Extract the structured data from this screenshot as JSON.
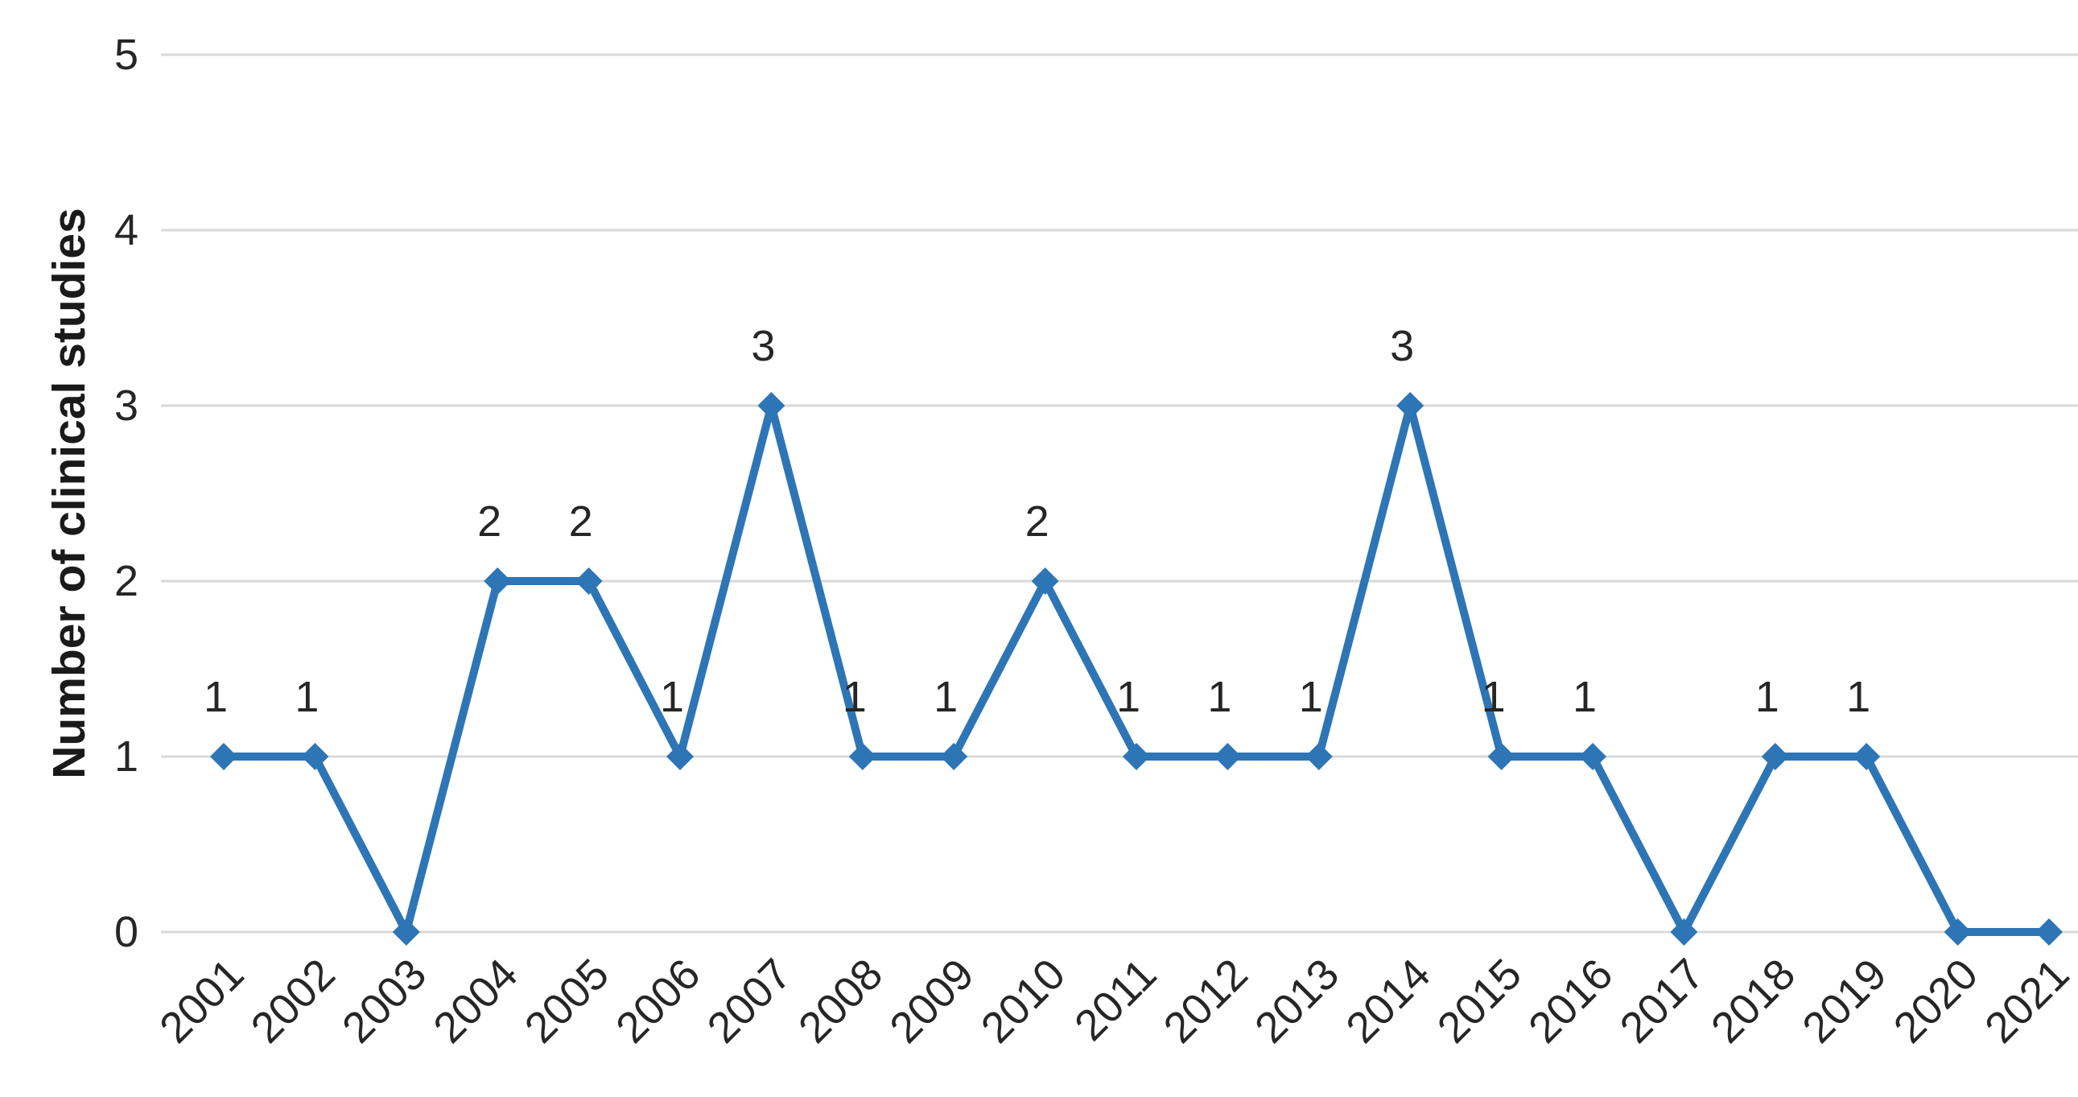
{
  "chart_data": {
    "type": "line",
    "title": "",
    "ylabel": "Number of clinical studies",
    "xlabel": "",
    "categories": [
      "2001",
      "2002",
      "2003",
      "2004",
      "2005",
      "2006",
      "2007",
      "2008",
      "2009",
      "2010",
      "2011",
      "2012",
      "2013",
      "2014",
      "2015",
      "2016",
      "2017",
      "2018",
      "2019",
      "2020",
      "2021"
    ],
    "series": [
      {
        "name": "Number of clinical studies",
        "values": [
          1,
          1,
          0,
          2,
          2,
          1,
          3,
          1,
          1,
          2,
          1,
          1,
          1,
          3,
          1,
          1,
          0,
          1,
          1,
          0,
          0
        ],
        "color": "#2E75B6",
        "marker": "diamond"
      }
    ],
    "data_labels": [
      "1",
      "1",
      "",
      "2",
      "2",
      "1",
      "3",
      "1",
      "1",
      "2",
      "1",
      "1",
      "1",
      "3",
      "1",
      "1",
      "",
      "1",
      "1",
      "",
      ""
    ],
    "yticks": [
      0,
      1,
      2,
      3,
      4,
      5
    ],
    "ylim": [
      0,
      5
    ],
    "grid": true,
    "legend": false,
    "gridline_color": "#D9D9D9",
    "text_color": "#262626",
    "background": "#FFFFFF"
  }
}
